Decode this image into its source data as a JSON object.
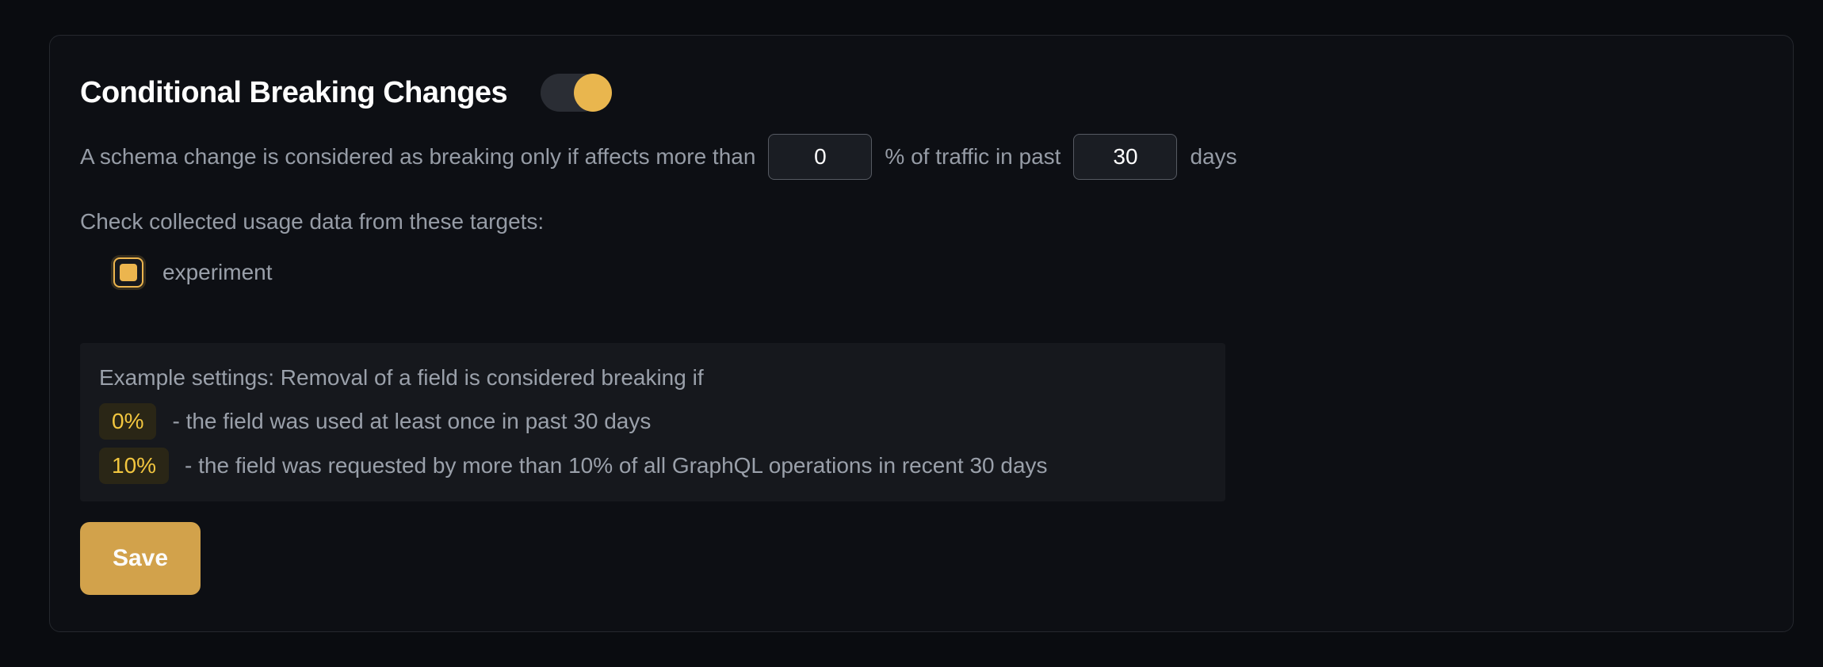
{
  "card": {
    "title": "Conditional Breaking Changes",
    "toggle": {
      "state": "on"
    },
    "threshold_row": {
      "text_before_percentage": "A schema change is considered as breaking only if affects more than",
      "percentage_value": "0",
      "text_between": "% of traffic in past",
      "days_value": "30",
      "text_after": "days"
    },
    "targets": {
      "label": "Check collected usage data from these targets:",
      "items": [
        {
          "label": "experiment",
          "checked": true
        }
      ]
    },
    "example": {
      "intro": "Example settings: Removal of a field is considered breaking if",
      "rows": [
        {
          "badge": "0%",
          "text": "- the field was used at least once in past 30 days"
        },
        {
          "badge": "10%",
          "text": "- the field was requested by more than 10% of all GraphQL operations in recent 30 days"
        }
      ]
    },
    "save_label": "Save"
  },
  "colors": {
    "accent": "#e9b64e",
    "save_button_bg": "#d2a24b",
    "badge_text": "#f2c63f",
    "badge_bg": "#2a2616",
    "card_border": "#25282e",
    "muted_text": "#969ca6"
  }
}
